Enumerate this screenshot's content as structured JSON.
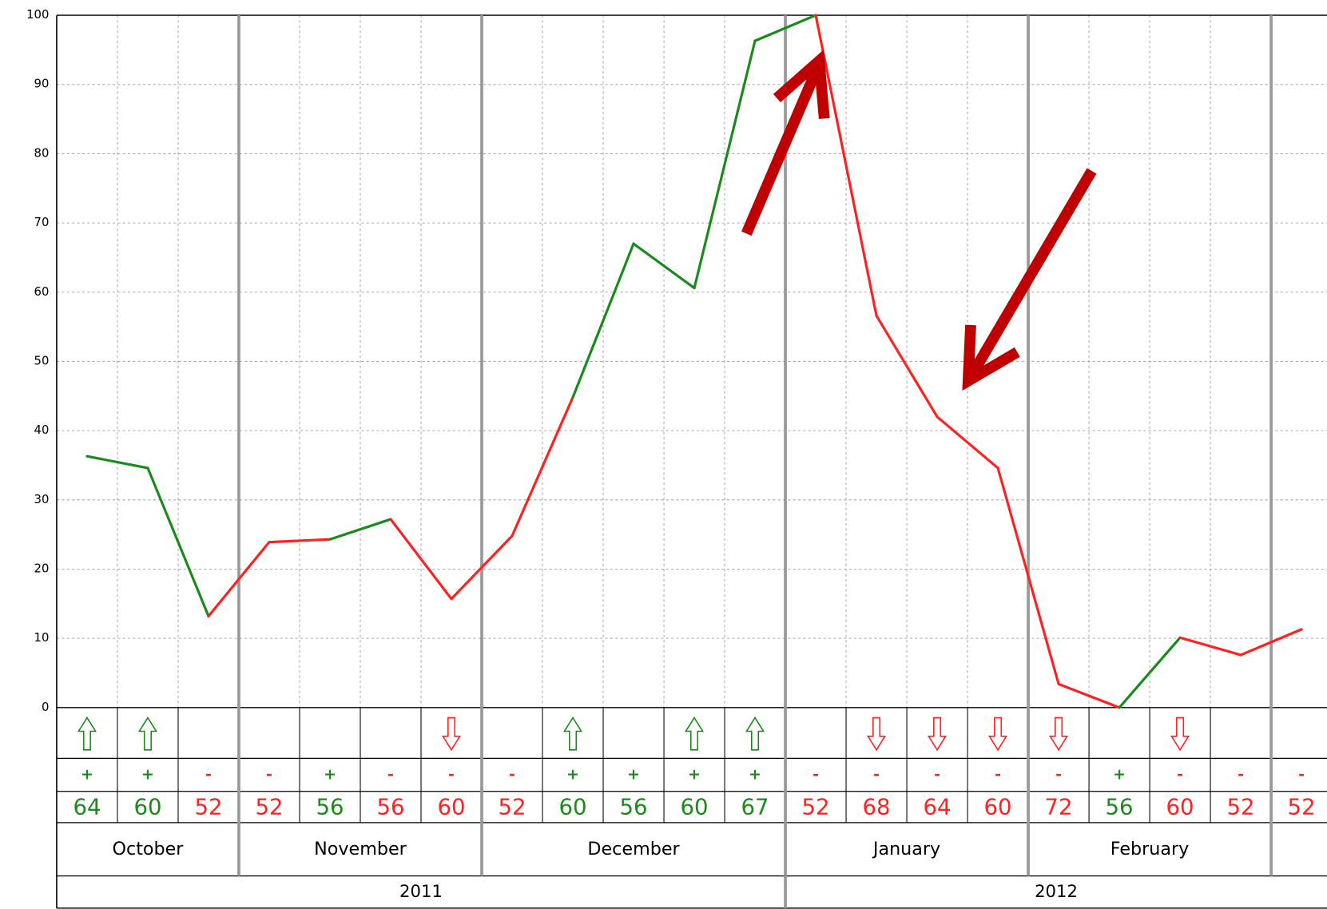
{
  "chart_data": {
    "type": "line",
    "values": [
      36.3,
      34.6,
      13.2,
      23.9,
      24.3,
      27.2,
      15.7,
      24.8,
      44.8,
      67.0,
      60.6,
      96.3,
      100,
      56.6,
      42.0,
      34.6,
      3.4,
      0,
      10.1,
      7.6,
      11.3
    ],
    "signs": [
      "+",
      "+",
      "-",
      "-",
      "+",
      "-",
      "-",
      "-",
      "+",
      "+",
      "+",
      "+",
      "-",
      "-",
      "-",
      "-",
      "-",
      "+",
      "-",
      "-",
      "-"
    ],
    "signals": [
      "up",
      "up",
      null,
      null,
      null,
      null,
      "down",
      null,
      "up",
      null,
      "up",
      "up",
      null,
      "down",
      "down",
      "down",
      "down",
      null,
      "down",
      null,
      null
    ],
    "numbers": [
      64,
      60,
      52,
      52,
      56,
      56,
      60,
      52,
      60,
      56,
      60,
      67,
      52,
      68,
      64,
      60,
      72,
      56,
      60,
      52,
      52
    ],
    "months": [
      {
        "label": "October",
        "columns": 3
      },
      {
        "label": "November",
        "columns": 4
      },
      {
        "label": "December",
        "columns": 5
      },
      {
        "label": "January",
        "columns": 4
      },
      {
        "label": "February",
        "columns": 4
      },
      {
        "label": null,
        "columns": 1
      }
    ],
    "years": [
      {
        "label": "2011",
        "columns": 12
      },
      {
        "label": "2012",
        "columns": 9
      }
    ],
    "up_color": "#1a8a1a",
    "down_color": "#ff2020",
    "ylim": [
      0,
      100
    ],
    "yticks": [
      0,
      10,
      20,
      30,
      40,
      50,
      60,
      70,
      80,
      90,
      100
    ],
    "grid": true
  }
}
